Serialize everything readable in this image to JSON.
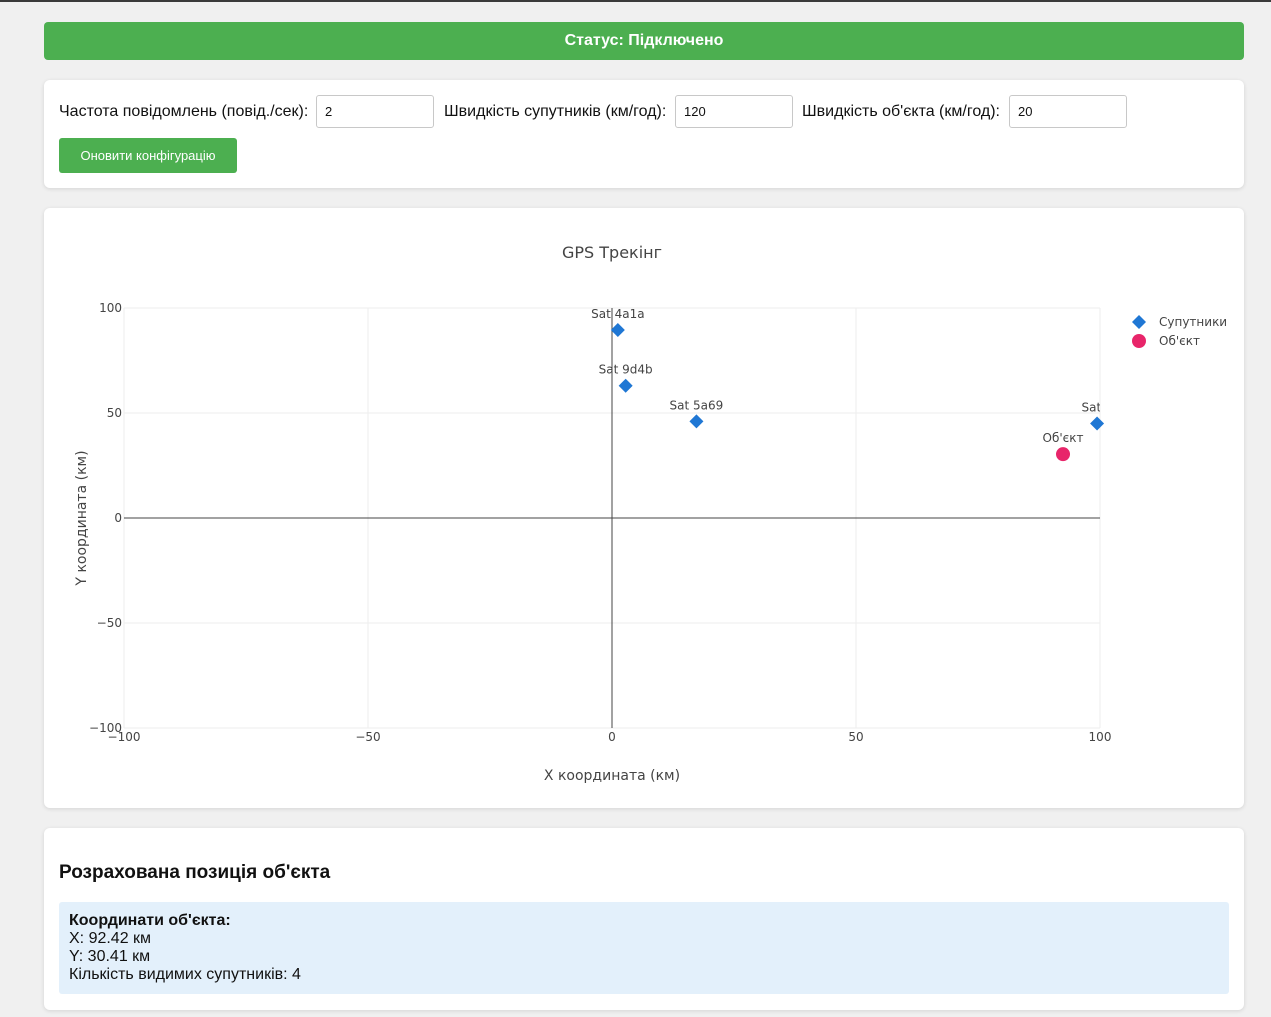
{
  "status": {
    "text": "Статус: Підключено"
  },
  "config": {
    "frequency_label": "Частота повідомлень (повід./сек):",
    "frequency_value": "2",
    "sat_speed_label": "Швидкість супутників (км/год):",
    "sat_speed_value": "120",
    "obj_speed_label": "Швидкість об'єкта (км/год):",
    "obj_speed_value": "20",
    "update_button": "Оновити конфігурацію"
  },
  "chart_data": {
    "type": "scatter",
    "title": "GPS Трекінг",
    "xlabel": "X координата (км)",
    "ylabel": "Y координата (км)",
    "xlim": [
      -100,
      100
    ],
    "ylim": [
      -100,
      100
    ],
    "xticks": [
      -100,
      -50,
      0,
      50,
      100
    ],
    "yticks": [
      -100,
      -50,
      0,
      50,
      100
    ],
    "grid": true,
    "legend_position": "top-right",
    "series": [
      {
        "name": "Супутники",
        "marker": "diamond",
        "color": "#1f77d4",
        "points": [
          {
            "label": "Sat 4a1a",
            "x": 1.2,
            "y": 89.5
          },
          {
            "label": "Sat 9d4b",
            "x": 2.8,
            "y": 63.0
          },
          {
            "label": "Sat 5a69",
            "x": 17.3,
            "y": 46.0
          },
          {
            "label": "Sat b",
            "x": 99.4,
            "y": 45.0
          }
        ]
      },
      {
        "name": "Об'єкт",
        "marker": "circle",
        "color": "#e8256a",
        "points": [
          {
            "label": "Об'єкт",
            "x": 92.42,
            "y": 30.41
          }
        ]
      }
    ]
  },
  "result": {
    "title": "Розрахована позиція об'єкта",
    "coords_heading": "Координати об'єкта:",
    "x_line": "X: 92.42 км",
    "y_line": "Y: 30.41 км",
    "visible_sats_line": "Кількість видимих супутників: 4"
  }
}
